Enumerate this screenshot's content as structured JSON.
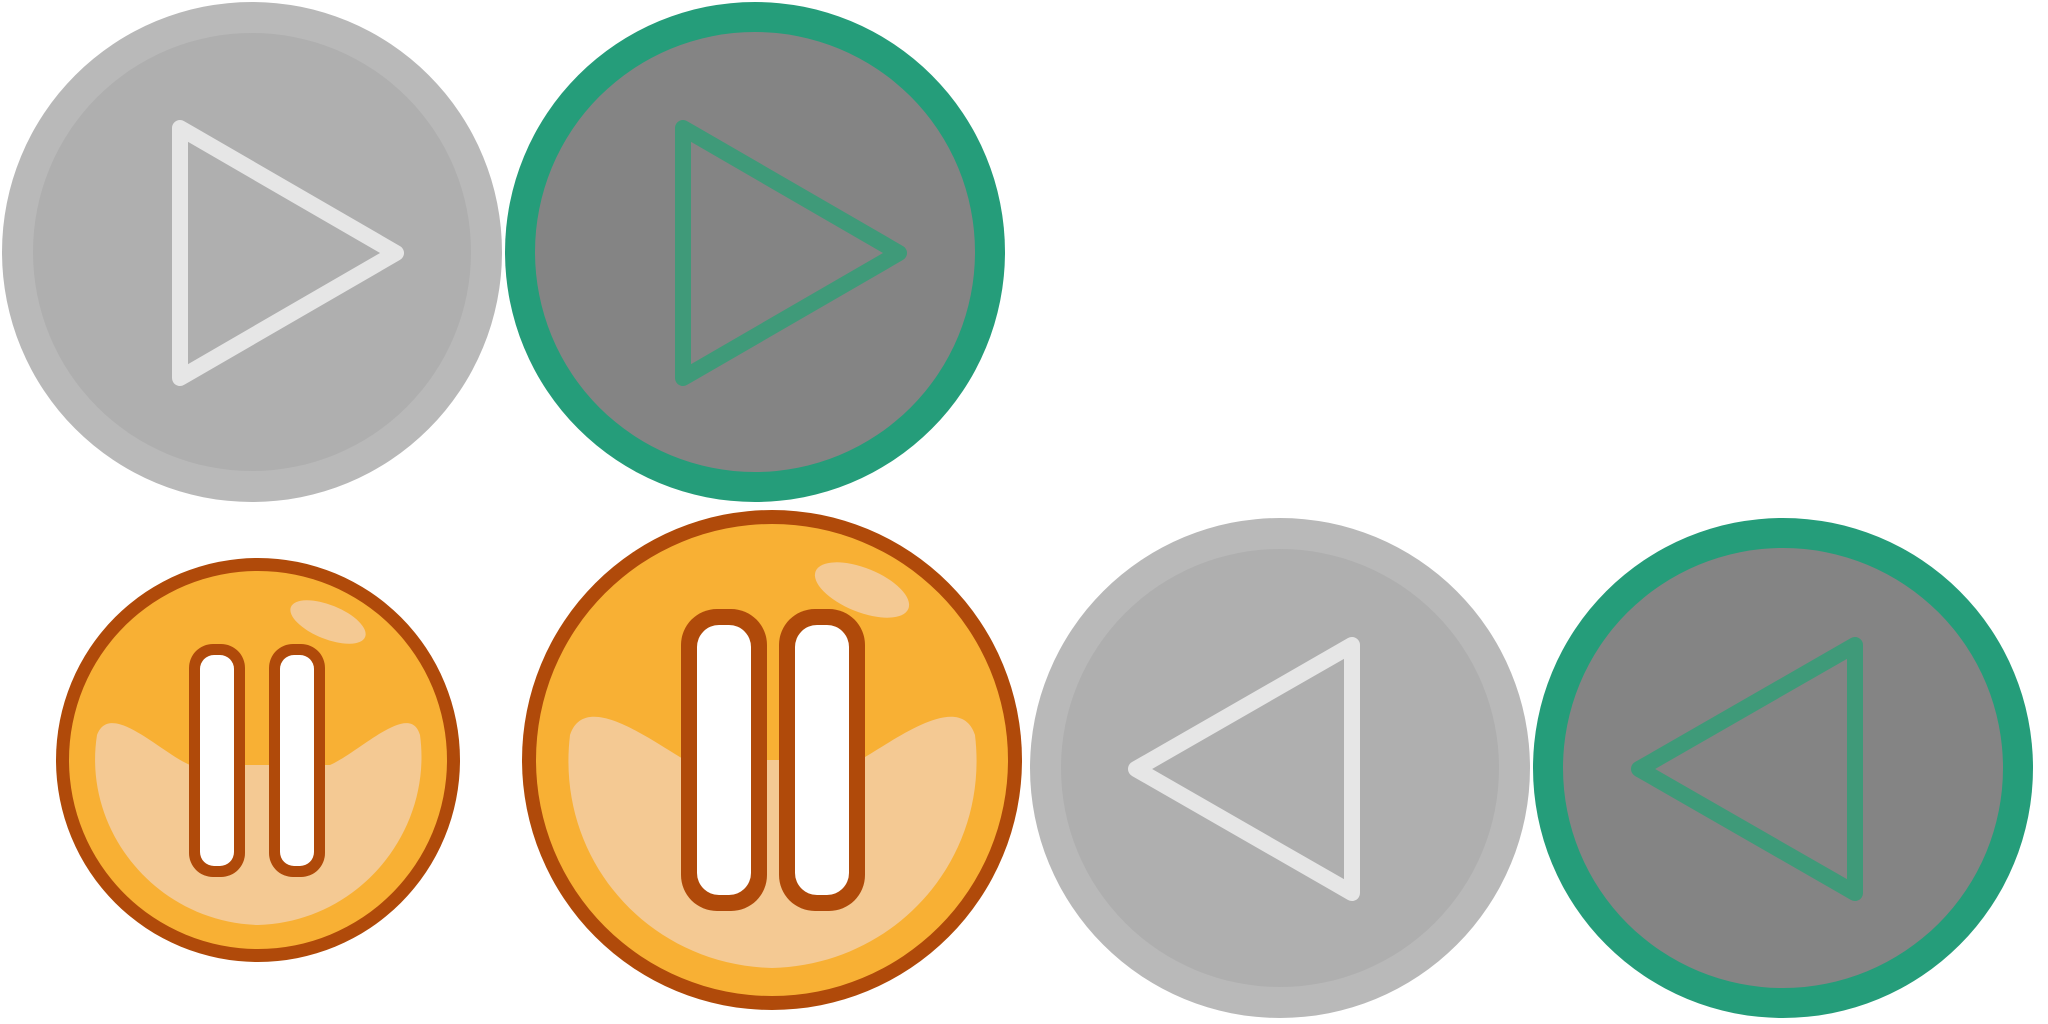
{
  "canvas": {
    "background": "#ffffff"
  },
  "colors": {
    "gray_ring": "#b9b9b9",
    "gray_face": "#afafaf",
    "gray_stroke": "#e6e6e6",
    "dark_face": "#848484",
    "green_ring": "#259d7a",
    "green_stroke": "#3f9a79",
    "orange_face": "#f8b034",
    "orange_ring": "#b04a0a",
    "orange_highlight": "#f4c993",
    "pause_bar_fill": "#ffffff"
  },
  "buttons": [
    {
      "name": "play-button-gray",
      "icon": "play-icon",
      "style": "gray",
      "state": "normal"
    },
    {
      "name": "play-button-green",
      "icon": "play-icon",
      "style": "green",
      "state": "hover"
    },
    {
      "name": "pause-button-small",
      "icon": "pause-icon",
      "style": "orange",
      "state": "small"
    },
    {
      "name": "pause-button-large",
      "icon": "pause-icon",
      "style": "orange",
      "state": "large"
    },
    {
      "name": "reverse-play-button-gray",
      "icon": "reverse-play-icon",
      "style": "gray",
      "state": "normal"
    },
    {
      "name": "reverse-play-button-green",
      "icon": "reverse-play-icon",
      "style": "green",
      "state": "hover"
    }
  ]
}
